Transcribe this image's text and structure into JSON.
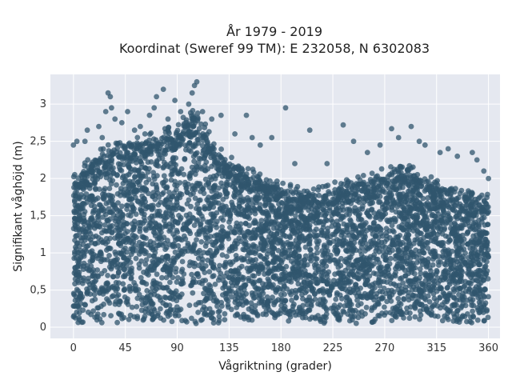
{
  "chart_data": {
    "type": "scatter",
    "title": "År 1979 - 2019",
    "subtitle": "Koordinat (Sweref 99 TM): E 232058, N 6302083",
    "xlabel": "Vågriktning (grader)",
    "ylabel": "Signifikant våghöjd (m)",
    "xlim": [
      -20,
      370
    ],
    "ylim": [
      -0.15,
      3.4
    ],
    "xticks": [
      0,
      45,
      90,
      135,
      180,
      225,
      270,
      315,
      360
    ],
    "xtick_labels": [
      "0",
      "45",
      "90",
      "135",
      "180",
      "225",
      "270",
      "315",
      "360"
    ],
    "yticks": [
      0,
      0.5,
      1,
      1.5,
      2,
      2.5,
      3
    ],
    "ytick_labels": [
      "0",
      "0,5",
      "1",
      "1,5",
      "2",
      "2,5",
      "3"
    ],
    "grid": true,
    "legend": "none",
    "marker_color": "#30566e",
    "background_color": "#e5e8f0",
    "direction_range": [
      0,
      360
    ],
    "height_range": [
      0.05,
      3.3
    ],
    "envelope": {
      "x": [
        0,
        15,
        30,
        45,
        60,
        75,
        90,
        100,
        105,
        110,
        120,
        135,
        150,
        165,
        180,
        200,
        225,
        250,
        270,
        290,
        300,
        315,
        330,
        345,
        360
      ],
      "y": [
        1.95,
        2.2,
        2.4,
        2.45,
        2.5,
        2.55,
        2.65,
        2.8,
        2.9,
        2.8,
        2.45,
        2.2,
        2.1,
        1.95,
        1.85,
        1.8,
        1.85,
        1.95,
        2.05,
        2.1,
        2.0,
        1.9,
        1.8,
        1.75,
        1.7
      ]
    },
    "outliers": [
      {
        "x": 0,
        "y": 2.45
      },
      {
        "x": 3,
        "y": 2.5
      },
      {
        "x": 10,
        "y": 2.5
      },
      {
        "x": 12,
        "y": 2.65
      },
      {
        "x": 22,
        "y": 2.7
      },
      {
        "x": 25,
        "y": 2.55
      },
      {
        "x": 28,
        "y": 2.9
      },
      {
        "x": 30,
        "y": 3.15
      },
      {
        "x": 32,
        "y": 3.1
      },
      {
        "x": 33,
        "y": 2.95
      },
      {
        "x": 36,
        "y": 2.8
      },
      {
        "x": 42,
        "y": 2.75
      },
      {
        "x": 47,
        "y": 2.9
      },
      {
        "x": 53,
        "y": 2.65
      },
      {
        "x": 58,
        "y": 2.7
      },
      {
        "x": 62,
        "y": 2.6
      },
      {
        "x": 66,
        "y": 2.85
      },
      {
        "x": 70,
        "y": 2.95
      },
      {
        "x": 72,
        "y": 3.1
      },
      {
        "x": 78,
        "y": 3.2
      },
      {
        "x": 82,
        "y": 2.8
      },
      {
        "x": 88,
        "y": 3.05
      },
      {
        "x": 93,
        "y": 2.9
      },
      {
        "x": 100,
        "y": 3.0
      },
      {
        "x": 103,
        "y": 3.15
      },
      {
        "x": 105,
        "y": 3.25
      },
      {
        "x": 107,
        "y": 3.3
      },
      {
        "x": 112,
        "y": 2.9
      },
      {
        "x": 120,
        "y": 2.8
      },
      {
        "x": 128,
        "y": 2.85
      },
      {
        "x": 140,
        "y": 2.6
      },
      {
        "x": 150,
        "y": 2.85
      },
      {
        "x": 155,
        "y": 2.55
      },
      {
        "x": 162,
        "y": 2.45
      },
      {
        "x": 172,
        "y": 2.55
      },
      {
        "x": 184,
        "y": 2.95
      },
      {
        "x": 192,
        "y": 2.2
      },
      {
        "x": 205,
        "y": 2.65
      },
      {
        "x": 220,
        "y": 2.2
      },
      {
        "x": 234,
        "y": 2.72
      },
      {
        "x": 243,
        "y": 2.5
      },
      {
        "x": 255,
        "y": 2.35
      },
      {
        "x": 266,
        "y": 2.45
      },
      {
        "x": 276,
        "y": 2.67
      },
      {
        "x": 282,
        "y": 2.55
      },
      {
        "x": 293,
        "y": 2.7
      },
      {
        "x": 300,
        "y": 2.5
      },
      {
        "x": 305,
        "y": 2.45
      },
      {
        "x": 318,
        "y": 2.35
      },
      {
        "x": 325,
        "y": 2.4
      },
      {
        "x": 333,
        "y": 2.3
      },
      {
        "x": 346,
        "y": 2.35
      },
      {
        "x": 350,
        "y": 2.25
      },
      {
        "x": 356,
        "y": 2.1
      },
      {
        "x": 360,
        "y": 2.0
      }
    ]
  }
}
